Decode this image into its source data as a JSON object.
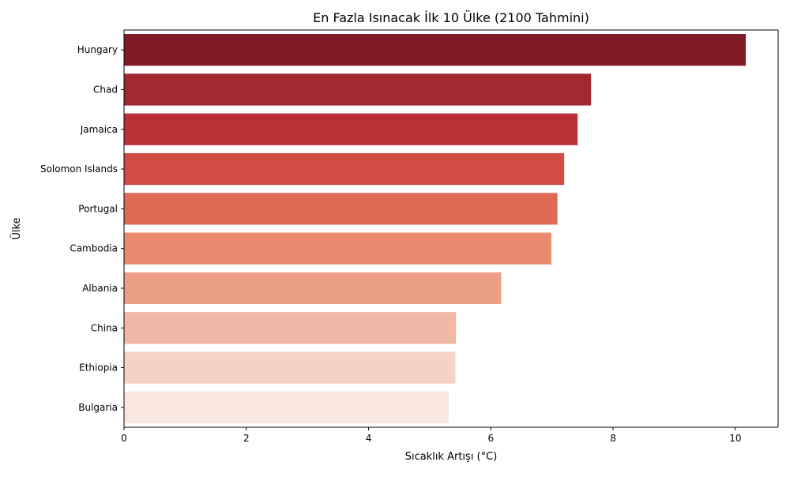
{
  "chart_data": {
    "type": "bar",
    "orientation": "horizontal",
    "title": "En Fazla Isınacak İlk 10 Ülke (2100 Tahmini)",
    "xlabel": "Sıcaklık Artışı (°C)",
    "ylabel": "Ülke",
    "categories": [
      "Hungary",
      "Chad",
      "Jamaica",
      "Solomon Islands",
      "Portugal",
      "Cambodia",
      "Albania",
      "China",
      "Ethiopia",
      "Bulgaria"
    ],
    "values": [
      10.17,
      7.64,
      7.42,
      7.2,
      7.09,
      6.99,
      6.17,
      5.43,
      5.42,
      5.31
    ],
    "xlim": [
      0,
      10.7
    ],
    "xticks": [
      0,
      2,
      4,
      6,
      8,
      10
    ],
    "grid": false,
    "colors": [
      "#7f1c25",
      "#a0282e",
      "#b93237",
      "#d24c43",
      "#e06b55",
      "#e98a6e",
      "#ec9f87",
      "#f0b9a6",
      "#f4d3c5",
      "#f8e6df"
    ]
  }
}
